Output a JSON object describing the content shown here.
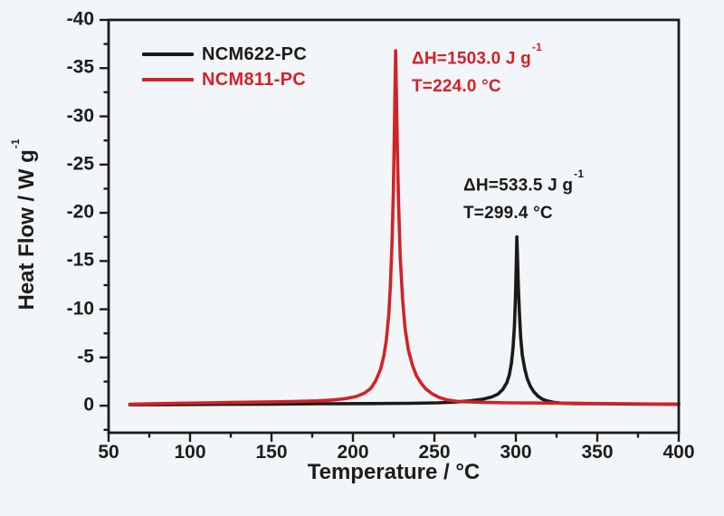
{
  "chart_data": {
    "type": "line",
    "title": "",
    "xlabel": "Temperature / °C",
    "ylabel_main": "Heat Flow / W g",
    "ylabel_sup": "-1",
    "xlim": [
      50,
      400
    ],
    "ylim_top": -40,
    "ylim_bottom": 2.8,
    "x_ticks": [
      50,
      100,
      150,
      200,
      250,
      300,
      350,
      400
    ],
    "y_ticks": [
      -40,
      -35,
      -30,
      -25,
      -20,
      -15,
      -10,
      -5,
      0
    ],
    "x_minor_step": 25,
    "y_minor_step": 2.5,
    "grid": false,
    "legend_position": "top-left",
    "axis_color": "#1c1c1c",
    "background": "#f3f6f8",
    "series": [
      {
        "name": "NCM622-PC",
        "color": "#1a1a1a",
        "peak_temperature_c": 299.4,
        "enthalpy_j_per_g": 533.5,
        "points": [
          [
            63,
            -0.1
          ],
          [
            90,
            -0.12
          ],
          [
            120,
            -0.15
          ],
          [
            150,
            -0.17
          ],
          [
            180,
            -0.2
          ],
          [
            210,
            -0.22
          ],
          [
            235,
            -0.25
          ],
          [
            252,
            -0.3
          ],
          [
            263,
            -0.38
          ],
          [
            272,
            -0.5
          ],
          [
            279,
            -0.65
          ],
          [
            285,
            -0.9
          ],
          [
            289,
            -1.2
          ],
          [
            292,
            -1.7
          ],
          [
            294.5,
            -2.4
          ],
          [
            296,
            -3.2
          ],
          [
            297.3,
            -4.4
          ],
          [
            298.3,
            -6
          ],
          [
            299.1,
            -8.2
          ],
          [
            299.7,
            -11
          ],
          [
            300.2,
            -14.5
          ],
          [
            300.6,
            -17.5
          ],
          [
            301,
            -15.5
          ],
          [
            301.5,
            -12.5
          ],
          [
            302.2,
            -9.5
          ],
          [
            303,
            -7
          ],
          [
            304,
            -5.2
          ],
          [
            305.5,
            -3.8
          ],
          [
            307,
            -2.8
          ],
          [
            309,
            -2
          ],
          [
            311,
            -1.45
          ],
          [
            313.5,
            -1
          ],
          [
            316,
            -0.7
          ],
          [
            319,
            -0.5
          ],
          [
            323,
            -0.35
          ],
          [
            328,
            -0.27
          ],
          [
            335,
            -0.22
          ],
          [
            350,
            -0.2
          ],
          [
            375,
            -0.18
          ],
          [
            400,
            -0.15
          ]
        ]
      },
      {
        "name": "NCM811-PC",
        "color": "#d42128",
        "peak_temperature_c": 224.0,
        "enthalpy_j_per_g": 1503.0,
        "points": [
          [
            63,
            -0.15
          ],
          [
            75,
            -0.2
          ],
          [
            90,
            -0.25
          ],
          [
            110,
            -0.3
          ],
          [
            130,
            -0.35
          ],
          [
            150,
            -0.4
          ],
          [
            165,
            -0.45
          ],
          [
            178,
            -0.5
          ],
          [
            188,
            -0.6
          ],
          [
            196,
            -0.75
          ],
          [
            202,
            -0.95
          ],
          [
            207,
            -1.3
          ],
          [
            211,
            -1.8
          ],
          [
            214,
            -2.6
          ],
          [
            217,
            -3.8
          ],
          [
            219,
            -5.2
          ],
          [
            220.5,
            -6.8
          ],
          [
            222,
            -9.5
          ],
          [
            223,
            -12.5
          ],
          [
            224,
            -17
          ],
          [
            224.8,
            -22
          ],
          [
            225.4,
            -28
          ],
          [
            225.9,
            -33.5
          ],
          [
            226.2,
            -36.8
          ],
          [
            226.6,
            -33
          ],
          [
            227.2,
            -27
          ],
          [
            228,
            -21
          ],
          [
            229,
            -15.5
          ],
          [
            230.5,
            -11
          ],
          [
            232,
            -8
          ],
          [
            234,
            -5.8
          ],
          [
            236.5,
            -4.2
          ],
          [
            239,
            -3.1
          ],
          [
            242,
            -2.3
          ],
          [
            245,
            -1.7
          ],
          [
            249,
            -1.2
          ],
          [
            253,
            -0.85
          ],
          [
            258,
            -0.6
          ],
          [
            264,
            -0.45
          ],
          [
            271,
            -0.4
          ],
          [
            280,
            -0.35
          ],
          [
            295,
            -0.3
          ],
          [
            315,
            -0.28
          ],
          [
            340,
            -0.25
          ],
          [
            370,
            -0.2
          ],
          [
            400,
            -0.15
          ]
        ]
      }
    ],
    "annotations": [
      {
        "series": "NCM811-PC",
        "line1_main": "ΔH=1503.0 J g",
        "line1_sup": "-1",
        "line2": "T=224.0 °C",
        "color": "#d42128"
      },
      {
        "series": "NCM622-PC",
        "line1_main": "ΔH=533.5 J g",
        "line1_sup": "-1",
        "line2": "T=299.4 °C",
        "color": "#1a1a1a"
      }
    ]
  }
}
